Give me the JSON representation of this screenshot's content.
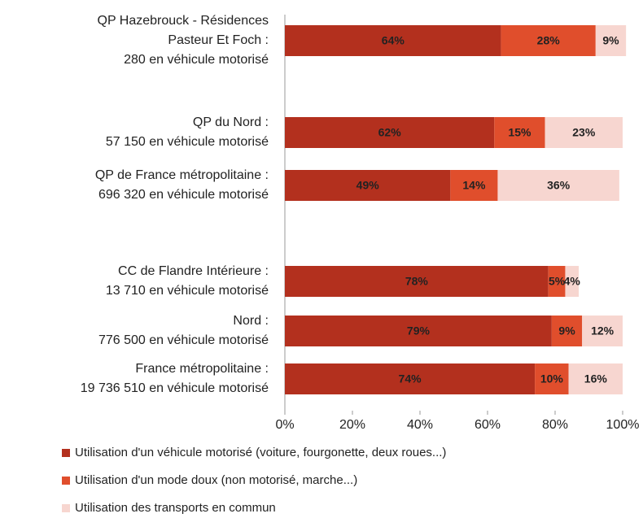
{
  "chart_data": {
    "type": "bar",
    "orientation": "horizontal",
    "stacked": true,
    "categories": [
      [
        "QP Hazebrouck - Résidences",
        "Pasteur Et Foch :",
        "280 en véhicule motorisé"
      ],
      [
        "QP du Nord :",
        "57 150 en véhicule motorisé"
      ],
      [
        "QP de France métropolitaine :",
        "696 320 en véhicule motorisé"
      ],
      [
        "CC de Flandre Intérieure :",
        "13 710 en véhicule motorisé"
      ],
      [
        "Nord :",
        "776 500 en véhicule motorisé"
      ],
      [
        "France métropolitaine :",
        "19 736 510 en véhicule motorisé"
      ]
    ],
    "series": [
      {
        "name": "Utilisation d'un véhicule motorisé (voiture, fourgonette, deux roues...)",
        "color": "#b3301e",
        "values": [
          64,
          62,
          49,
          78,
          79,
          74
        ],
        "value_labels": [
          "64%",
          "62%",
          "49%",
          "78%",
          "79%",
          "74%"
        ]
      },
      {
        "name": "Utilisation d'un mode doux (non motorisé, marche...)",
        "color": "#e04e2c",
        "values": [
          28,
          15,
          14,
          5,
          9,
          10
        ],
        "value_labels": [
          "28%",
          "15%",
          "14%",
          "5%",
          "9%",
          "10%"
        ]
      },
      {
        "name": "Utilisation des transports en commun",
        "color": "#f7d6d0",
        "values": [
          9,
          23,
          36,
          4,
          12,
          16
        ],
        "value_labels": [
          "9%",
          "23%",
          "36%",
          "4%",
          "12%",
          "16%"
        ]
      }
    ],
    "xlim": [
      0,
      100
    ],
    "xticks": [
      {
        "value": 0,
        "label": "0%"
      },
      {
        "value": 20,
        "label": "20%"
      },
      {
        "value": 40,
        "label": "40%"
      },
      {
        "value": 60,
        "label": "60%"
      },
      {
        "value": 80,
        "label": "80%"
      },
      {
        "value": 100,
        "label": "100%"
      }
    ]
  }
}
